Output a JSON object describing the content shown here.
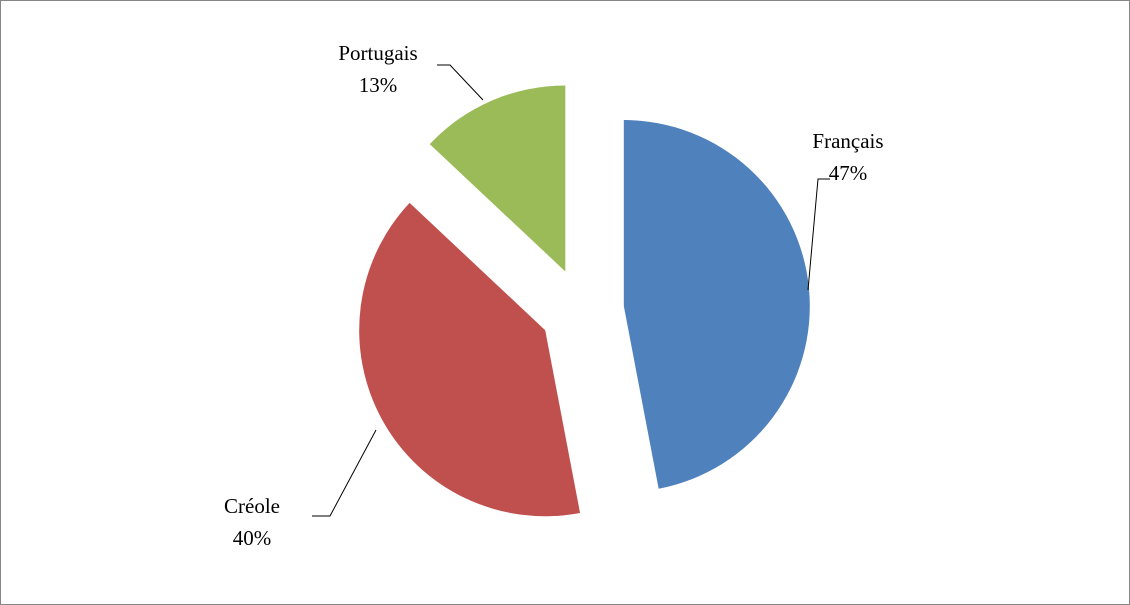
{
  "chart_data": {
    "type": "pie",
    "categories": [
      "Français",
      "Créole",
      "Portugais"
    ],
    "values": [
      47,
      40,
      13
    ],
    "value_labels": [
      "47%",
      "40%",
      "13%"
    ],
    "colors": [
      "#4f81bd",
      "#c0504d",
      "#9bbb59"
    ],
    "exploded": true
  }
}
